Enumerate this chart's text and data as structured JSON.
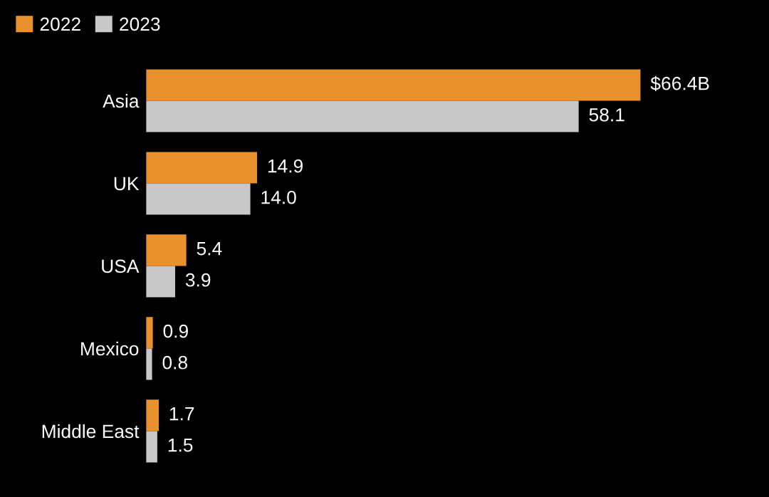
{
  "chart_data": {
    "type": "bar",
    "orientation": "horizontal",
    "categories": [
      "Asia",
      "UK",
      "USA",
      "Mexico",
      "Middle East"
    ],
    "series": [
      {
        "name": "2022",
        "color": "#e8912d",
        "values": [
          66.4,
          14.9,
          5.4,
          0.9,
          1.7
        ],
        "value_labels": [
          "$66.4B",
          "14.9",
          "5.4",
          "0.9",
          "1.7"
        ]
      },
      {
        "name": "2023",
        "color": "#c8c8c8",
        "values": [
          58.1,
          14.0,
          3.9,
          0.8,
          1.5
        ],
        "value_labels": [
          "58.1",
          "14.0",
          "3.9",
          "0.8",
          "1.5"
        ]
      }
    ],
    "legend": "top left"
  }
}
